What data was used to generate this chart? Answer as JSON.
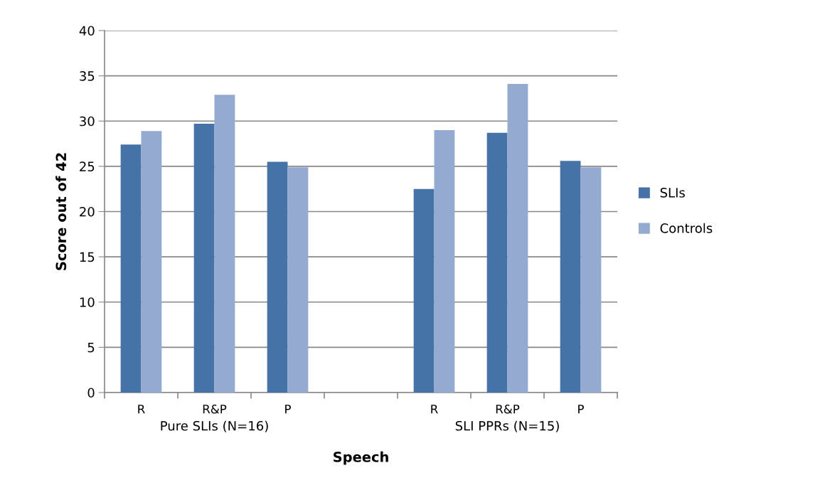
{
  "chart_data": {
    "type": "bar",
    "xlabel": "Speech",
    "ylabel": "Score out of 42",
    "categories": [
      "R",
      "R&P",
      "P",
      null,
      "R",
      "R&P",
      "P"
    ],
    "series": [
      {
        "name": "SLIs",
        "color": "#4673a7",
        "values": [
          27.4,
          29.7,
          25.5,
          null,
          22.5,
          28.7,
          25.6
        ]
      },
      {
        "name": "Controls",
        "color": "#95aad1",
        "values": [
          28.9,
          32.9,
          24.9,
          null,
          29.0,
          34.1,
          24.9
        ]
      }
    ],
    "annotations": [
      "Pure SLIs (N=16)",
      "SLI PPRs (N=15)"
    ],
    "ylim": [
      0,
      40
    ],
    "yticks": [
      0,
      5,
      10,
      15,
      20,
      25,
      30,
      35,
      40
    ],
    "grid": "y",
    "legend": "right"
  }
}
